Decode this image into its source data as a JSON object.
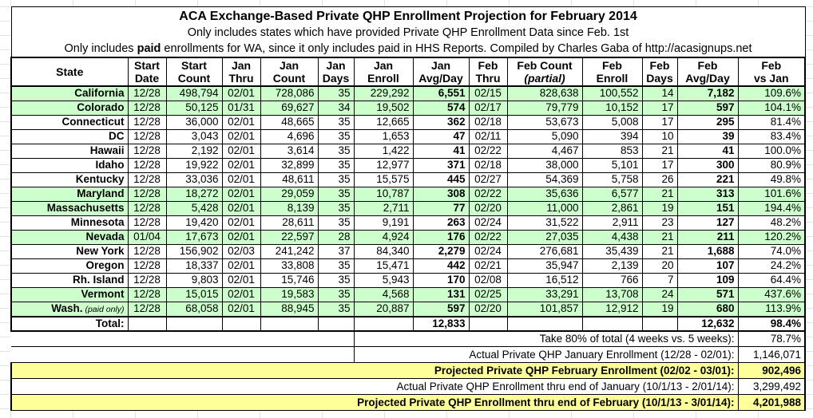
{
  "title": {
    "line1": "ACA Exchange-Based Private QHP Enrollment Projection for February 2014",
    "line2": "Only includes states which have provided Private QHP Enrollment Data since Feb. 1st",
    "line3_pre": "Only includes ",
    "line3_bold": "paid",
    "line3_post": " enrollments for WA, since it only includes paid in HHS Reports. Compiled by Charles Gaba of http://acasignups.net"
  },
  "columns": [
    {
      "key": "state",
      "l1": "State",
      "l2": ""
    },
    {
      "key": "start_date",
      "l1": "Start",
      "l2": "Date"
    },
    {
      "key": "start_count",
      "l1": "Start",
      "l2": "Count"
    },
    {
      "key": "jan_thru",
      "l1": "Jan",
      "l2": "Thru"
    },
    {
      "key": "jan_count",
      "l1": "Jan",
      "l2": "Count"
    },
    {
      "key": "jan_days",
      "l1": "Jan",
      "l2": "Days"
    },
    {
      "key": "jan_enroll",
      "l1": "Jan",
      "l2": "Enroll"
    },
    {
      "key": "jan_avg",
      "l1": "Jan",
      "l2": "Avg/Day"
    },
    {
      "key": "feb_thru",
      "l1": "Feb",
      "l2": "Thru"
    },
    {
      "key": "feb_count",
      "l1": "Feb Count",
      "l2": "(partial)",
      "l2_italic": true
    },
    {
      "key": "feb_enroll",
      "l1": "Feb",
      "l2": "Enroll"
    },
    {
      "key": "feb_days",
      "l1": "Feb",
      "l2": "Days"
    },
    {
      "key": "feb_avg",
      "l1": "Feb",
      "l2": "Avg/Day"
    },
    {
      "key": "feb_vs_jan",
      "l1": "Feb",
      "l2": "vs Jan"
    }
  ],
  "rows": [
    {
      "state": "California",
      "start_date": "12/28",
      "start_count": "498,794",
      "jan_thru": "02/01",
      "jan_count": "728,086",
      "jan_days": "35",
      "jan_enroll": "229,292",
      "jan_avg": "6,551",
      "feb_thru": "02/15",
      "feb_count": "828,638",
      "feb_enroll": "100,552",
      "feb_days": "14",
      "feb_avg": "7,182",
      "feb_vs_jan": "109.6%",
      "green": true,
      "gray": []
    },
    {
      "state": "Colorado",
      "start_date": "12/28",
      "start_count": "50,125",
      "jan_thru": "01/31",
      "jan_count": "69,627",
      "jan_days": "34",
      "jan_enroll": "19,502",
      "jan_avg": "574",
      "feb_thru": "02/17",
      "feb_count": "79,779",
      "feb_enroll": "10,152",
      "feb_days": "17",
      "feb_avg": "597",
      "feb_vs_jan": "104.1%",
      "green": true,
      "gray": [
        "start_count",
        "jan_count"
      ]
    },
    {
      "state": "Connecticut",
      "start_date": "12/28",
      "start_count": "36,000",
      "jan_thru": "02/01",
      "jan_count": "48,665",
      "jan_days": "35",
      "jan_enroll": "12,665",
      "jan_avg": "362",
      "feb_thru": "02/18",
      "feb_count": "53,673",
      "feb_enroll": "5,008",
      "feb_days": "17",
      "feb_avg": "295",
      "feb_vs_jan": "81.4%",
      "green": false,
      "gray": []
    },
    {
      "state": "DC",
      "start_date": "12/28",
      "start_count": "3,043",
      "jan_thru": "02/01",
      "jan_count": "4,696",
      "jan_days": "35",
      "jan_enroll": "1,653",
      "jan_avg": "47",
      "feb_thru": "02/11",
      "feb_count": "5,090",
      "feb_enroll": "394",
      "feb_days": "10",
      "feb_avg": "39",
      "feb_vs_jan": "83.4%",
      "green": false,
      "gray": []
    },
    {
      "state": "Hawaii",
      "start_date": "12/28",
      "start_count": "2,192",
      "jan_thru": "02/01",
      "jan_count": "3,614",
      "jan_days": "35",
      "jan_enroll": "1,422",
      "jan_avg": "41",
      "feb_thru": "02/22",
      "feb_count": "4,467",
      "feb_enroll": "853",
      "feb_days": "21",
      "feb_avg": "41",
      "feb_vs_jan": "100.0%",
      "green": false,
      "gray": []
    },
    {
      "state": "Idaho",
      "start_date": "12/28",
      "start_count": "19,922",
      "jan_thru": "02/01",
      "jan_count": "32,899",
      "jan_days": "35",
      "jan_enroll": "12,977",
      "jan_avg": "371",
      "feb_thru": "02/18",
      "feb_count": "38,000",
      "feb_enroll": "5,101",
      "feb_days": "17",
      "feb_avg": "300",
      "feb_vs_jan": "80.9%",
      "green": false,
      "gray": []
    },
    {
      "state": "Kentucky",
      "start_date": "12/28",
      "start_count": "33,036",
      "jan_thru": "02/01",
      "jan_count": "48,611",
      "jan_days": "35",
      "jan_enroll": "15,575",
      "jan_avg": "445",
      "feb_thru": "02/27",
      "feb_count": "54,369",
      "feb_enroll": "5,758",
      "feb_days": "26",
      "feb_avg": "221",
      "feb_vs_jan": "49.8%",
      "green": false,
      "gray": []
    },
    {
      "state": "Maryland",
      "start_date": "12/28",
      "start_count": "18,272",
      "jan_thru": "02/01",
      "jan_count": "29,059",
      "jan_days": "35",
      "jan_enroll": "10,787",
      "jan_avg": "308",
      "feb_thru": "02/22",
      "feb_count": "35,636",
      "feb_enroll": "6,577",
      "feb_days": "21",
      "feb_avg": "313",
      "feb_vs_jan": "101.6%",
      "green": true,
      "gray": []
    },
    {
      "state": "Massachusetts",
      "start_date": "12/28",
      "start_count": "5,428",
      "jan_thru": "02/01",
      "jan_count": "8,139",
      "jan_days": "35",
      "jan_enroll": "2,711",
      "jan_avg": "77",
      "feb_thru": "02/20",
      "feb_count": "11,000",
      "feb_enroll": "2,861",
      "feb_days": "19",
      "feb_avg": "151",
      "feb_vs_jan": "194.4%",
      "green": true,
      "gray": []
    },
    {
      "state": "Minnesota",
      "start_date": "12/28",
      "start_count": "19,420",
      "jan_thru": "02/01",
      "jan_count": "28,611",
      "jan_days": "35",
      "jan_enroll": "9,191",
      "jan_avg": "263",
      "feb_thru": "02/24",
      "feb_count": "31,522",
      "feb_enroll": "2,911",
      "feb_days": "23",
      "feb_avg": "127",
      "feb_vs_jan": "48.2%",
      "green": false,
      "gray": []
    },
    {
      "state": "Nevada",
      "start_date": "01/04",
      "start_count": "17,673",
      "jan_thru": "02/01",
      "jan_count": "22,597",
      "jan_days": "28",
      "jan_enroll": "4,924",
      "jan_avg": "176",
      "feb_thru": "02/22",
      "feb_count": "27,035",
      "feb_enroll": "4,438",
      "feb_days": "21",
      "feb_avg": "211",
      "feb_vs_jan": "120.2%",
      "green": true,
      "gray": [
        "start_count",
        "jan_count"
      ]
    },
    {
      "state": "New York",
      "start_date": "12/28",
      "start_count": "156,902",
      "jan_thru": "02/03",
      "jan_count": "241,242",
      "jan_days": "37",
      "jan_enroll": "84,340",
      "jan_avg": "2,279",
      "feb_thru": "02/24",
      "feb_count": "276,681",
      "feb_enroll": "35,439",
      "feb_days": "21",
      "feb_avg": "1,688",
      "feb_vs_jan": "74.0%",
      "green": false,
      "gray": []
    },
    {
      "state": "Oregon",
      "start_date": "12/28",
      "start_count": "18,337",
      "jan_thru": "02/01",
      "jan_count": "33,808",
      "jan_days": "35",
      "jan_enroll": "15,471",
      "jan_avg": "442",
      "feb_thru": "02/21",
      "feb_count": "35,947",
      "feb_enroll": "2,139",
      "feb_days": "20",
      "feb_avg": "107",
      "feb_vs_jan": "24.2%",
      "green": false,
      "gray": []
    },
    {
      "state": "Rh. Island",
      "start_date": "12/28",
      "start_count": "9,803",
      "jan_thru": "02/01",
      "jan_count": "15,746",
      "jan_days": "35",
      "jan_enroll": "5,943",
      "jan_avg": "170",
      "feb_thru": "02/08",
      "feb_count": "16,512",
      "feb_enroll": "766",
      "feb_days": "7",
      "feb_avg": "109",
      "feb_vs_jan": "64.4%",
      "green": false,
      "gray": []
    },
    {
      "state": "Vermont",
      "start_date": "12/28",
      "start_count": "15,015",
      "jan_thru": "02/01",
      "jan_count": "19,583",
      "jan_days": "35",
      "jan_enroll": "4,568",
      "jan_avg": "131",
      "feb_thru": "02/25",
      "feb_count": "33,291",
      "feb_enroll": "13,708",
      "feb_days": "24",
      "feb_avg": "571",
      "feb_vs_jan": "437.6%",
      "green": true,
      "gray": []
    },
    {
      "state": "Wash.",
      "note": " (paid only)",
      "start_date": "12/28",
      "start_count": "68,058",
      "jan_thru": "02/01",
      "jan_count": "88,945",
      "jan_days": "35",
      "jan_enroll": "20,887",
      "jan_avg": "597",
      "feb_thru": "02/20",
      "feb_count": "101,857",
      "feb_enroll": "12,912",
      "feb_days": "19",
      "feb_avg": "680",
      "feb_vs_jan": "113.9%",
      "green": true,
      "gray": []
    }
  ],
  "total_row": {
    "label": "Total:",
    "jan_avg": "12,833",
    "feb_avg": "12,632",
    "feb_vs_jan": "98.4%"
  },
  "summary_rows": [
    {
      "label": "Take 80% of total (4 weeks vs. 5 weeks):",
      "value": "78.7%"
    },
    {
      "label": "Actual Private QHP January Enrollment (12/28 - 02/01):",
      "value": "1,146,071"
    },
    {
      "label": "Projected Private QHP February Enrollment (02/02 - 03/01):",
      "value": "902,496"
    },
    {
      "label": "Actual Private QHP Enrollment thru end of January (10/1/13 - 2/01/14):",
      "value": "3,299,492"
    },
    {
      "label": "Projected Private QHP Enrollment thru end of February (10/1/13 - 3/01/14):",
      "value": "4,201,988"
    }
  ],
  "colors": {
    "row_highlight_green": "#ccffcc",
    "summary_highlight_yellow": "#ffff99",
    "estimate_gray_text": "#7d7d7d",
    "border_black": "#000000"
  }
}
